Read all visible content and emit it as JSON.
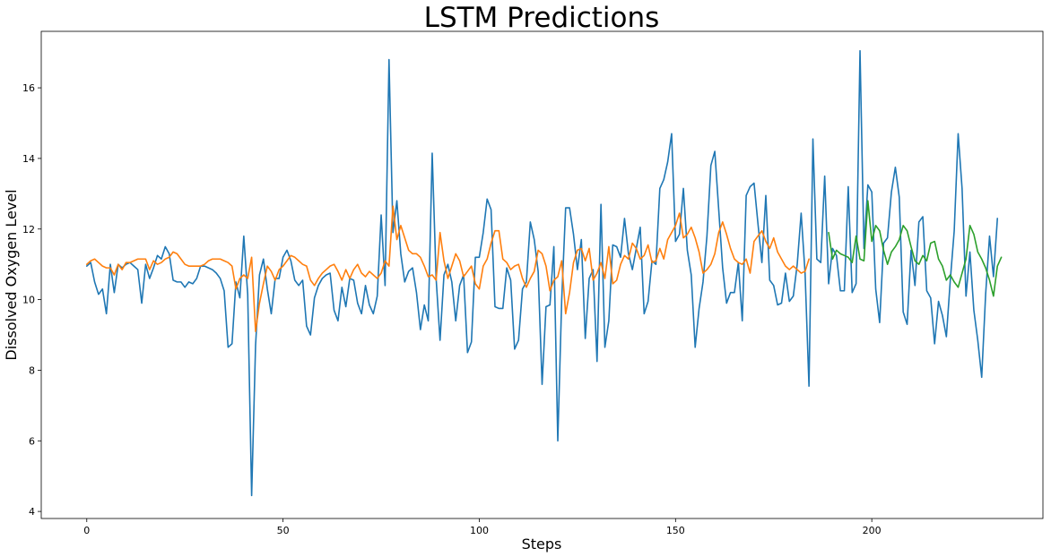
{
  "chart_data": {
    "type": "line",
    "title": "LSTM Predictions",
    "xlabel": "Steps",
    "ylabel": "Dissolved Oxygen Level",
    "xlim": [
      -11.6,
      243.6
    ],
    "ylim": [
      3.8,
      17.6
    ],
    "xticks": [
      0,
      50,
      100,
      150,
      200
    ],
    "yticks": [
      4,
      6,
      8,
      10,
      12,
      14,
      16
    ],
    "grid": false,
    "legend": false,
    "series": [
      {
        "color": "#1f77b4",
        "x_start": 0,
        "values": [
          10.95,
          11.05,
          10.5,
          10.15,
          10.3,
          9.6,
          11.0,
          10.2,
          11.0,
          10.9,
          11.0,
          11.05,
          10.95,
          10.85,
          9.9,
          11.0,
          10.6,
          10.9,
          11.25,
          11.15,
          11.5,
          11.3,
          10.55,
          10.5,
          10.5,
          10.35,
          10.5,
          10.45,
          10.6,
          10.95,
          10.95,
          10.9,
          10.85,
          10.75,
          10.6,
          10.25,
          8.65,
          8.75,
          10.5,
          10.05,
          11.8,
          10.15,
          4.45,
          8.7,
          10.7,
          11.15,
          10.3,
          9.6,
          10.6,
          10.6,
          11.2,
          11.4,
          11.1,
          10.55,
          10.4,
          10.55,
          9.25,
          9.0,
          10.05,
          10.4,
          10.6,
          10.7,
          10.75,
          9.7,
          9.4,
          10.35,
          9.8,
          10.6,
          10.55,
          9.9,
          9.6,
          10.4,
          9.85,
          9.6,
          10.1,
          12.4,
          10.4,
          16.8,
          11.9,
          12.8,
          11.3,
          10.5,
          10.8,
          10.9,
          10.2,
          9.15,
          9.85,
          9.4,
          14.15,
          10.6,
          8.85,
          10.7,
          11.0,
          10.5,
          9.4,
          10.4,
          10.7,
          8.5,
          8.8,
          11.2,
          11.2,
          11.9,
          12.85,
          12.55,
          9.8,
          9.75,
          9.75,
          10.9,
          10.55,
          8.6,
          8.85,
          10.3,
          10.5,
          12.2,
          11.7,
          10.8,
          7.6,
          9.8,
          9.85,
          11.5,
          6.0,
          10.0,
          12.6,
          12.6,
          11.85,
          10.85,
          11.7,
          8.9,
          10.6,
          10.85,
          8.25,
          12.7,
          8.65,
          9.4,
          11.55,
          11.5,
          11.2,
          12.3,
          11.3,
          10.85,
          11.45,
          12.05,
          9.6,
          9.95,
          11.1,
          11.0,
          13.15,
          13.4,
          13.9,
          14.7,
          11.65,
          11.85,
          13.15,
          11.4,
          10.7,
          8.65,
          9.75,
          10.5,
          11.8,
          13.8,
          14.2,
          12.55,
          10.9,
          9.9,
          10.2,
          10.2,
          11.05,
          9.4,
          12.95,
          13.2,
          13.3,
          12.15,
          11.05,
          12.95,
          10.55,
          10.4,
          9.85,
          9.9,
          10.75,
          9.95,
          10.1,
          11.0,
          12.45,
          10.75,
          7.55,
          14.55,
          11.15,
          11.05,
          13.5,
          10.45,
          11.45,
          11.25,
          10.25,
          10.25,
          13.2,
          10.2,
          10.45,
          17.05,
          11.45,
          13.25,
          13.05,
          10.3,
          9.35,
          11.6,
          11.75,
          13.05,
          13.75,
          12.9,
          9.65,
          9.3,
          11.4,
          10.4,
          12.2,
          12.35,
          10.25,
          10.05,
          8.75,
          9.95,
          9.55,
          8.95,
          10.55,
          11.95,
          14.7,
          13.15,
          10.1,
          11.35,
          9.7,
          8.85,
          7.8,
          10.15,
          11.8,
          10.65,
          12.3
        ]
      },
      {
        "color": "#ff7f0e",
        "x_start": 0,
        "values": [
          11.0,
          11.1,
          11.15,
          11.05,
          10.95,
          10.9,
          10.9,
          10.7,
          11.0,
          10.85,
          11.05,
          11.05,
          11.1,
          11.15,
          11.15,
          11.15,
          10.85,
          11.1,
          11.0,
          11.05,
          11.15,
          11.2,
          11.35,
          11.3,
          11.15,
          11.0,
          10.95,
          10.95,
          10.95,
          10.95,
          11.0,
          11.1,
          11.15,
          11.15,
          11.15,
          11.1,
          11.05,
          10.95,
          10.3,
          10.6,
          10.7,
          10.6,
          11.2,
          9.1,
          9.9,
          10.45,
          10.95,
          10.8,
          10.55,
          10.85,
          10.95,
          11.1,
          11.25,
          11.2,
          11.1,
          11.0,
          10.95,
          10.55,
          10.4,
          10.6,
          10.75,
          10.85,
          10.95,
          11.0,
          10.8,
          10.55,
          10.85,
          10.6,
          10.85,
          11.0,
          10.75,
          10.65,
          10.8,
          10.7,
          10.6,
          10.75,
          11.1,
          10.95,
          12.65,
          11.7,
          12.1,
          11.75,
          11.4,
          11.3,
          11.3,
          11.2,
          10.95,
          10.65,
          10.7,
          10.55,
          11.9,
          11.1,
          10.6,
          10.95,
          11.3,
          11.1,
          10.65,
          10.8,
          10.95,
          10.45,
          10.3,
          10.95,
          11.15,
          11.6,
          11.95,
          11.95,
          11.15,
          11.05,
          10.85,
          10.95,
          11.0,
          10.6,
          10.35,
          10.6,
          10.8,
          11.4,
          11.3,
          10.95,
          10.25,
          10.55,
          10.65,
          11.1,
          9.6,
          10.2,
          11.05,
          11.4,
          11.45,
          11.1,
          11.45,
          10.55,
          10.75,
          11.05,
          10.6,
          11.5,
          10.45,
          10.55,
          11.0,
          11.25,
          11.15,
          11.6,
          11.45,
          11.15,
          11.25,
          11.55,
          11.05,
          11.1,
          11.45,
          11.15,
          11.7,
          11.9,
          12.1,
          12.45,
          11.75,
          11.85,
          12.05,
          11.75,
          11.35,
          10.75,
          10.85,
          11.0,
          11.3,
          11.9,
          12.2,
          11.85,
          11.45,
          11.15,
          11.05,
          11.0,
          11.15,
          10.75,
          11.65,
          11.8,
          11.95,
          11.65,
          11.45,
          11.75,
          11.35,
          11.15,
          10.95,
          10.85,
          10.95,
          10.85,
          10.75,
          10.8,
          11.15
        ]
      },
      {
        "color": "#2ca02c",
        "x_start": 189,
        "values": [
          11.9,
          11.15,
          11.4,
          11.3,
          11.25,
          11.2,
          11.05,
          11.8,
          11.15,
          11.1,
          12.8,
          11.65,
          12.1,
          11.95,
          11.4,
          11.0,
          11.35,
          11.5,
          11.7,
          12.1,
          11.95,
          11.5,
          11.1,
          11.0,
          11.25,
          11.1,
          11.6,
          11.65,
          11.15,
          10.95,
          10.55,
          10.7,
          10.5,
          10.35,
          10.75,
          11.15,
          12.1,
          11.85,
          11.35,
          11.15,
          10.9,
          10.55,
          10.1,
          10.95,
          11.2
        ]
      }
    ]
  }
}
